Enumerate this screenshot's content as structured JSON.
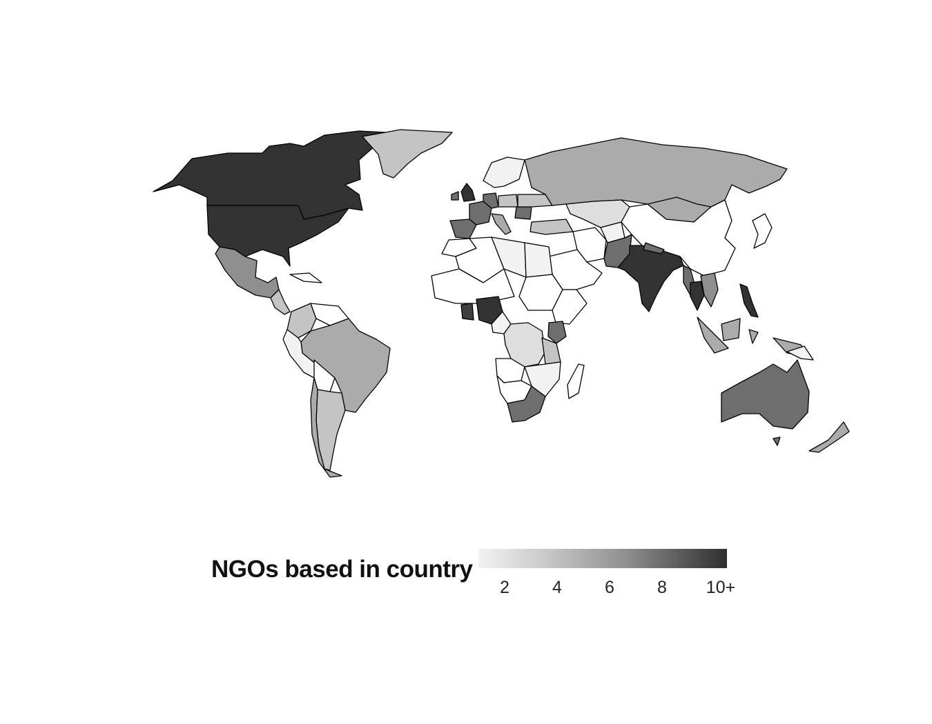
{
  "legend": {
    "title": "NGOs based in country",
    "ticks": [
      "2",
      "4",
      "6",
      "8",
      "10+"
    ],
    "range": [
      1,
      10
    ],
    "color_low": "#f2f2f2",
    "color_high": "#2f2f2f"
  },
  "chart_data": {
    "type": "choropleth",
    "title": "",
    "legend_title": "NGOs based in country",
    "color_scale": "sequential grayscale, light = few, dark = many (10+)",
    "regions": [
      {
        "name": "United States",
        "value": 10
      },
      {
        "name": "Canada",
        "value": 10
      },
      {
        "name": "United Kingdom",
        "value": 10
      },
      {
        "name": "India",
        "value": 10
      },
      {
        "name": "Nigeria",
        "value": 10
      },
      {
        "name": "Thailand",
        "value": 10
      },
      {
        "name": "Cambodia",
        "value": 10
      },
      {
        "name": "Philippines",
        "value": 10
      },
      {
        "name": "Ghana",
        "value": 9
      },
      {
        "name": "South Africa",
        "value": 7
      },
      {
        "name": "Australia",
        "value": 7
      },
      {
        "name": "Kenya",
        "value": 7
      },
      {
        "name": "France",
        "value": 7
      },
      {
        "name": "Spain",
        "value": 7
      },
      {
        "name": "Germany",
        "value": 8
      },
      {
        "name": "Pakistan",
        "value": 7
      },
      {
        "name": "Nepal",
        "value": 8
      },
      {
        "name": "Mexico",
        "value": 6
      },
      {
        "name": "Russia",
        "value": 4
      },
      {
        "name": "Brazil",
        "value": 4
      },
      {
        "name": "Mongolia",
        "value": 4
      },
      {
        "name": "Indonesia",
        "value": 4
      },
      {
        "name": "Greenland",
        "value": 3
      },
      {
        "name": "Argentina",
        "value": 3
      },
      {
        "name": "New Zealand",
        "value": 4
      },
      {
        "name": "Kazakhstan",
        "value": 2
      },
      {
        "name": "DR Congo",
        "value": 2
      },
      {
        "name": "Tanzania",
        "value": 3
      },
      {
        "name": "Colombia",
        "value": 3
      },
      {
        "name": "Egypt",
        "value": 1
      },
      {
        "name": "Peru",
        "value": 1
      }
    ]
  }
}
